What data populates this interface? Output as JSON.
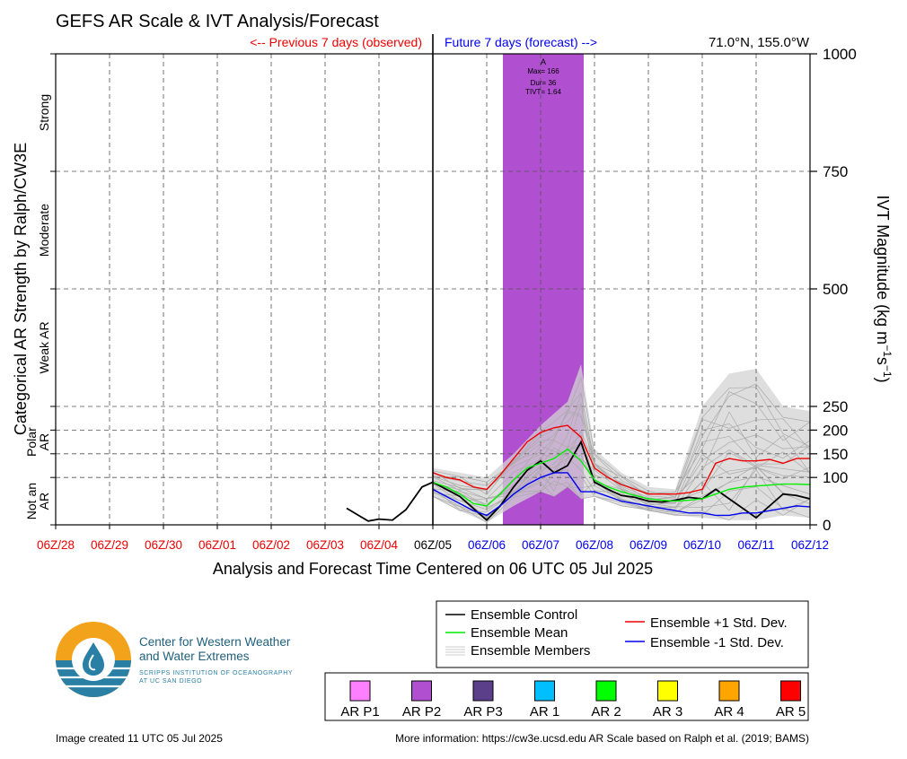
{
  "title": "GEFS AR Scale & IVT Analysis/Forecast",
  "location": "71.0°N, 155.0°W",
  "previous_label": "<-- Previous 7 days (observed)",
  "future_label": "Future 7 days (forecast) -->",
  "xlabel": "Analysis and Forecast Time Centered on 06 UTC 05 Jul 2025",
  "ylabel_left": "Categorical AR Strength by Ralph/CW3E",
  "ylabel_right": "IVT Magnitude (kg m",
  "ylabel_right_sup1": "−1",
  "ylabel_right_mid": "s",
  "ylabel_right_sup2": "−1",
  "ylabel_right_end": ")",
  "categories_left": [
    {
      "label": "Strong",
      "ymid": 875
    },
    {
      "label": "Moderate",
      "ymid": 625
    },
    {
      "label": "Weak AR",
      "ymid": 375
    },
    {
      "label": "Polar AR",
      "ymid": 175
    },
    {
      "label": "Not an AR",
      "ymid": 50
    }
  ],
  "ar_event": {
    "label": "A",
    "max": "Max= 166",
    "dur": "Dur= 36",
    "tivt": "TIVT= 1.64",
    "color": "#b04fd0"
  },
  "legend": {
    "control": "Ensemble Control",
    "mean": "Ensemble Mean",
    "members": "Ensemble Members",
    "plus": "Ensemble +1 Std. Dev.",
    "minus": "Ensemble -1 Std. Dev."
  },
  "scale_legend": [
    {
      "label": "AR P1",
      "color": "#ff80ff"
    },
    {
      "label": "AR P2",
      "color": "#b04fd0"
    },
    {
      "label": "AR P3",
      "color": "#5b3f8a"
    },
    {
      "label": "AR 1",
      "color": "#00bfff"
    },
    {
      "label": "AR 2",
      "color": "#00ff00"
    },
    {
      "label": "AR 3",
      "color": "#ffff00"
    },
    {
      "label": "AR 4",
      "color": "#ffa500"
    },
    {
      "label": "AR 5",
      "color": "#ff0000"
    }
  ],
  "logo": {
    "line1": "Center for Western Weather",
    "line2": "and Water Extremes",
    "sub1": "SCRIPPS INSTITUTION OF OCEANOGRAPHY",
    "sub2": "AT UC SAN DIEGO"
  },
  "footer_left": "Image created 11 UTC 05 Jul 2025",
  "footer_right": "More information: https://cw3e.ucsd.edu AR Scale based on Ralph et al. (2019; BAMS)",
  "chart_data": {
    "type": "line",
    "xlim": [
      0,
      14
    ],
    "ylim": [
      0,
      1000
    ],
    "yscale": "piecewise",
    "yticks": [
      0,
      100,
      150,
      200,
      250,
      500,
      750,
      1000
    ],
    "gridlines_y": [
      100,
      150,
      200,
      250,
      500,
      750
    ],
    "x_ticks": [
      {
        "label": "06Z/28",
        "day": 0,
        "color": "red"
      },
      {
        "label": "06Z/29",
        "day": 1,
        "color": "red"
      },
      {
        "label": "06Z/30",
        "day": 2,
        "color": "red"
      },
      {
        "label": "06Z/01",
        "day": 3,
        "color": "red"
      },
      {
        "label": "06Z/02",
        "day": 4,
        "color": "red"
      },
      {
        "label": "06Z/03",
        "day": 5,
        "color": "red"
      },
      {
        "label": "06Z/04",
        "day": 6,
        "color": "red"
      },
      {
        "label": "06Z/05",
        "day": 7,
        "color": "black"
      },
      {
        "label": "06Z/06",
        "day": 8,
        "color": "blue"
      },
      {
        "label": "06Z/07",
        "day": 9,
        "color": "blue"
      },
      {
        "label": "06Z/08",
        "day": 10,
        "color": "blue"
      },
      {
        "label": "06Z/09",
        "day": 11,
        "color": "blue"
      },
      {
        "label": "06Z/10",
        "day": 12,
        "color": "blue"
      },
      {
        "label": "06Z/11",
        "day": 13,
        "color": "blue"
      },
      {
        "label": "06Z/12",
        "day": 14,
        "color": "blue"
      }
    ],
    "ar_period": [
      8.3,
      9.8
    ],
    "analysis": {
      "x": [
        5.4,
        5.65,
        5.8,
        6.0,
        6.25,
        6.5,
        6.8,
        7.0
      ],
      "y": [
        35,
        18,
        8,
        12,
        10,
        32,
        80,
        90
      ]
    },
    "series": [
      {
        "name": "Ensemble Control",
        "color": "#000000",
        "x": [
          7.0,
          7.25,
          7.5,
          7.75,
          8.0,
          8.25,
          8.5,
          8.75,
          9.0,
          9.25,
          9.5,
          9.75,
          10.0,
          10.25,
          10.5,
          10.75,
          11.0,
          11.25,
          11.5,
          11.75,
          12.0,
          12.25,
          12.5,
          12.75,
          13.0,
          13.25,
          13.5,
          13.75,
          14.0
        ],
        "y": [
          90,
          75,
          60,
          35,
          10,
          40,
          80,
          115,
          135,
          110,
          125,
          175,
          90,
          75,
          62,
          58,
          50,
          48,
          52,
          58,
          55,
          75,
          55,
          35,
          15,
          40,
          65,
          62,
          55
        ]
      },
      {
        "name": "Ensemble Mean",
        "color": "#00ee00",
        "x": [
          7.0,
          7.25,
          7.5,
          7.75,
          8.0,
          8.25,
          8.5,
          8.75,
          9.0,
          9.25,
          9.5,
          9.75,
          10.0,
          10.25,
          10.5,
          10.75,
          11.0,
          11.25,
          11.5,
          11.75,
          12.0,
          12.25,
          12.5,
          12.75,
          13.0,
          13.25,
          13.5,
          13.75,
          14.0
        ],
        "y": [
          90,
          80,
          65,
          45,
          40,
          65,
          95,
          120,
          130,
          140,
          160,
          135,
          95,
          80,
          70,
          62,
          55,
          52,
          50,
          52,
          55,
          65,
          75,
          80,
          82,
          84,
          86,
          86,
          85
        ]
      },
      {
        "name": "Ensemble +1 Std. Dev.",
        "color": "#ee0000",
        "x": [
          7.0,
          7.25,
          7.5,
          7.75,
          8.0,
          8.25,
          8.5,
          8.75,
          9.0,
          9.25,
          9.5,
          9.75,
          10.0,
          10.25,
          10.5,
          10.75,
          11.0,
          11.25,
          11.5,
          11.75,
          12.0,
          12.25,
          12.5,
          12.75,
          13.0,
          13.25,
          13.5,
          13.75,
          14.0
        ],
        "y": [
          110,
          100,
          95,
          80,
          75,
          105,
          140,
          175,
          195,
          205,
          210,
          185,
          120,
          100,
          85,
          75,
          65,
          65,
          65,
          68,
          75,
          130,
          140,
          135,
          135,
          138,
          130,
          140,
          140
        ]
      },
      {
        "name": "Ensemble -1 Std. Dev.",
        "color": "#0000ee",
        "x": [
          7.0,
          7.25,
          7.5,
          7.75,
          8.0,
          8.25,
          8.5,
          8.75,
          9.0,
          9.25,
          9.5,
          9.75,
          10.0,
          10.25,
          10.5,
          10.75,
          11.0,
          11.25,
          11.5,
          11.75,
          12.0,
          12.25,
          12.5,
          12.75,
          13.0,
          13.25,
          13.5,
          13.75,
          14.0
        ],
        "y": [
          75,
          60,
          45,
          30,
          20,
          40,
          65,
          85,
          100,
          110,
          110,
          70,
          70,
          60,
          50,
          45,
          40,
          35,
          30,
          25,
          25,
          20,
          20,
          25,
          25,
          30,
          35,
          40,
          38
        ]
      }
    ],
    "members_envelope": {
      "x": [
        7.0,
        7.5,
        8.0,
        8.5,
        9.0,
        9.25,
        9.5,
        9.75,
        10.0,
        10.5,
        11.0,
        11.5,
        12.0,
        12.5,
        13.0,
        13.5,
        14.0
      ],
      "low": [
        60,
        30,
        5,
        40,
        70,
        60,
        80,
        55,
        60,
        40,
        30,
        20,
        15,
        10,
        10,
        20,
        15
      ],
      "high": [
        120,
        110,
        100,
        150,
        210,
        235,
        260,
        340,
        160,
        110,
        80,
        75,
        250,
        320,
        330,
        250,
        240
      ]
    }
  }
}
